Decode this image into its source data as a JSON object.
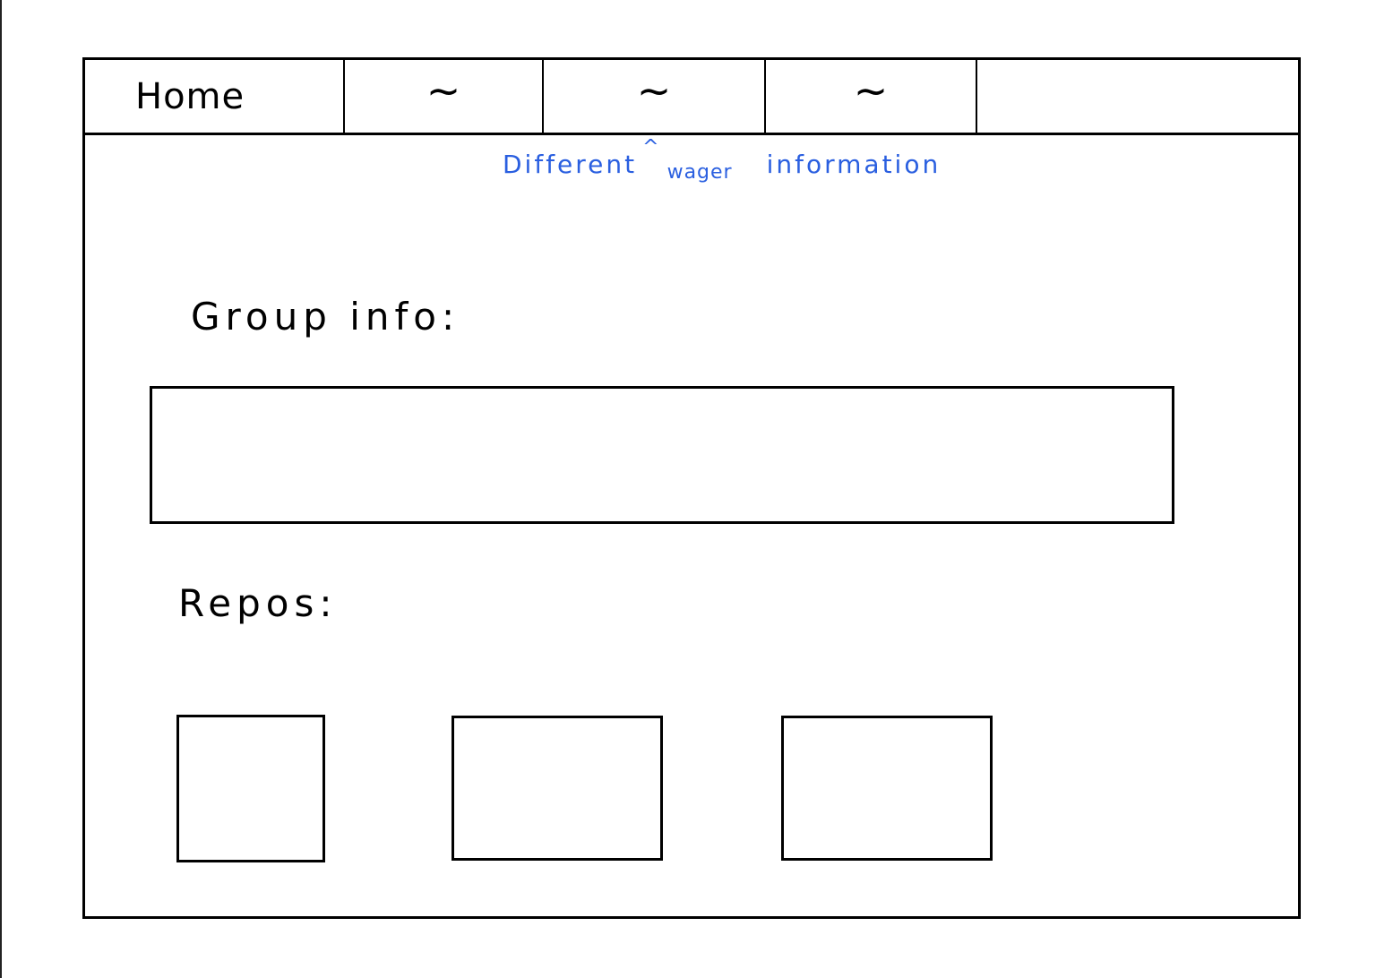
{
  "navbar": {
    "tabs": [
      {
        "label": "Home"
      },
      {
        "label": "~"
      },
      {
        "label": "~"
      },
      {
        "label": "~"
      },
      {
        "label": ""
      }
    ]
  },
  "annotation": {
    "part1": "Different",
    "caret": "^",
    "part2": "wager",
    "part3": "information",
    "color": "#2a5fe0"
  },
  "main": {
    "group_info_label": "Group info:",
    "repos_label": "Repos:",
    "repos": [
      {
        "name": ""
      },
      {
        "name": ""
      },
      {
        "name": ""
      }
    ]
  }
}
